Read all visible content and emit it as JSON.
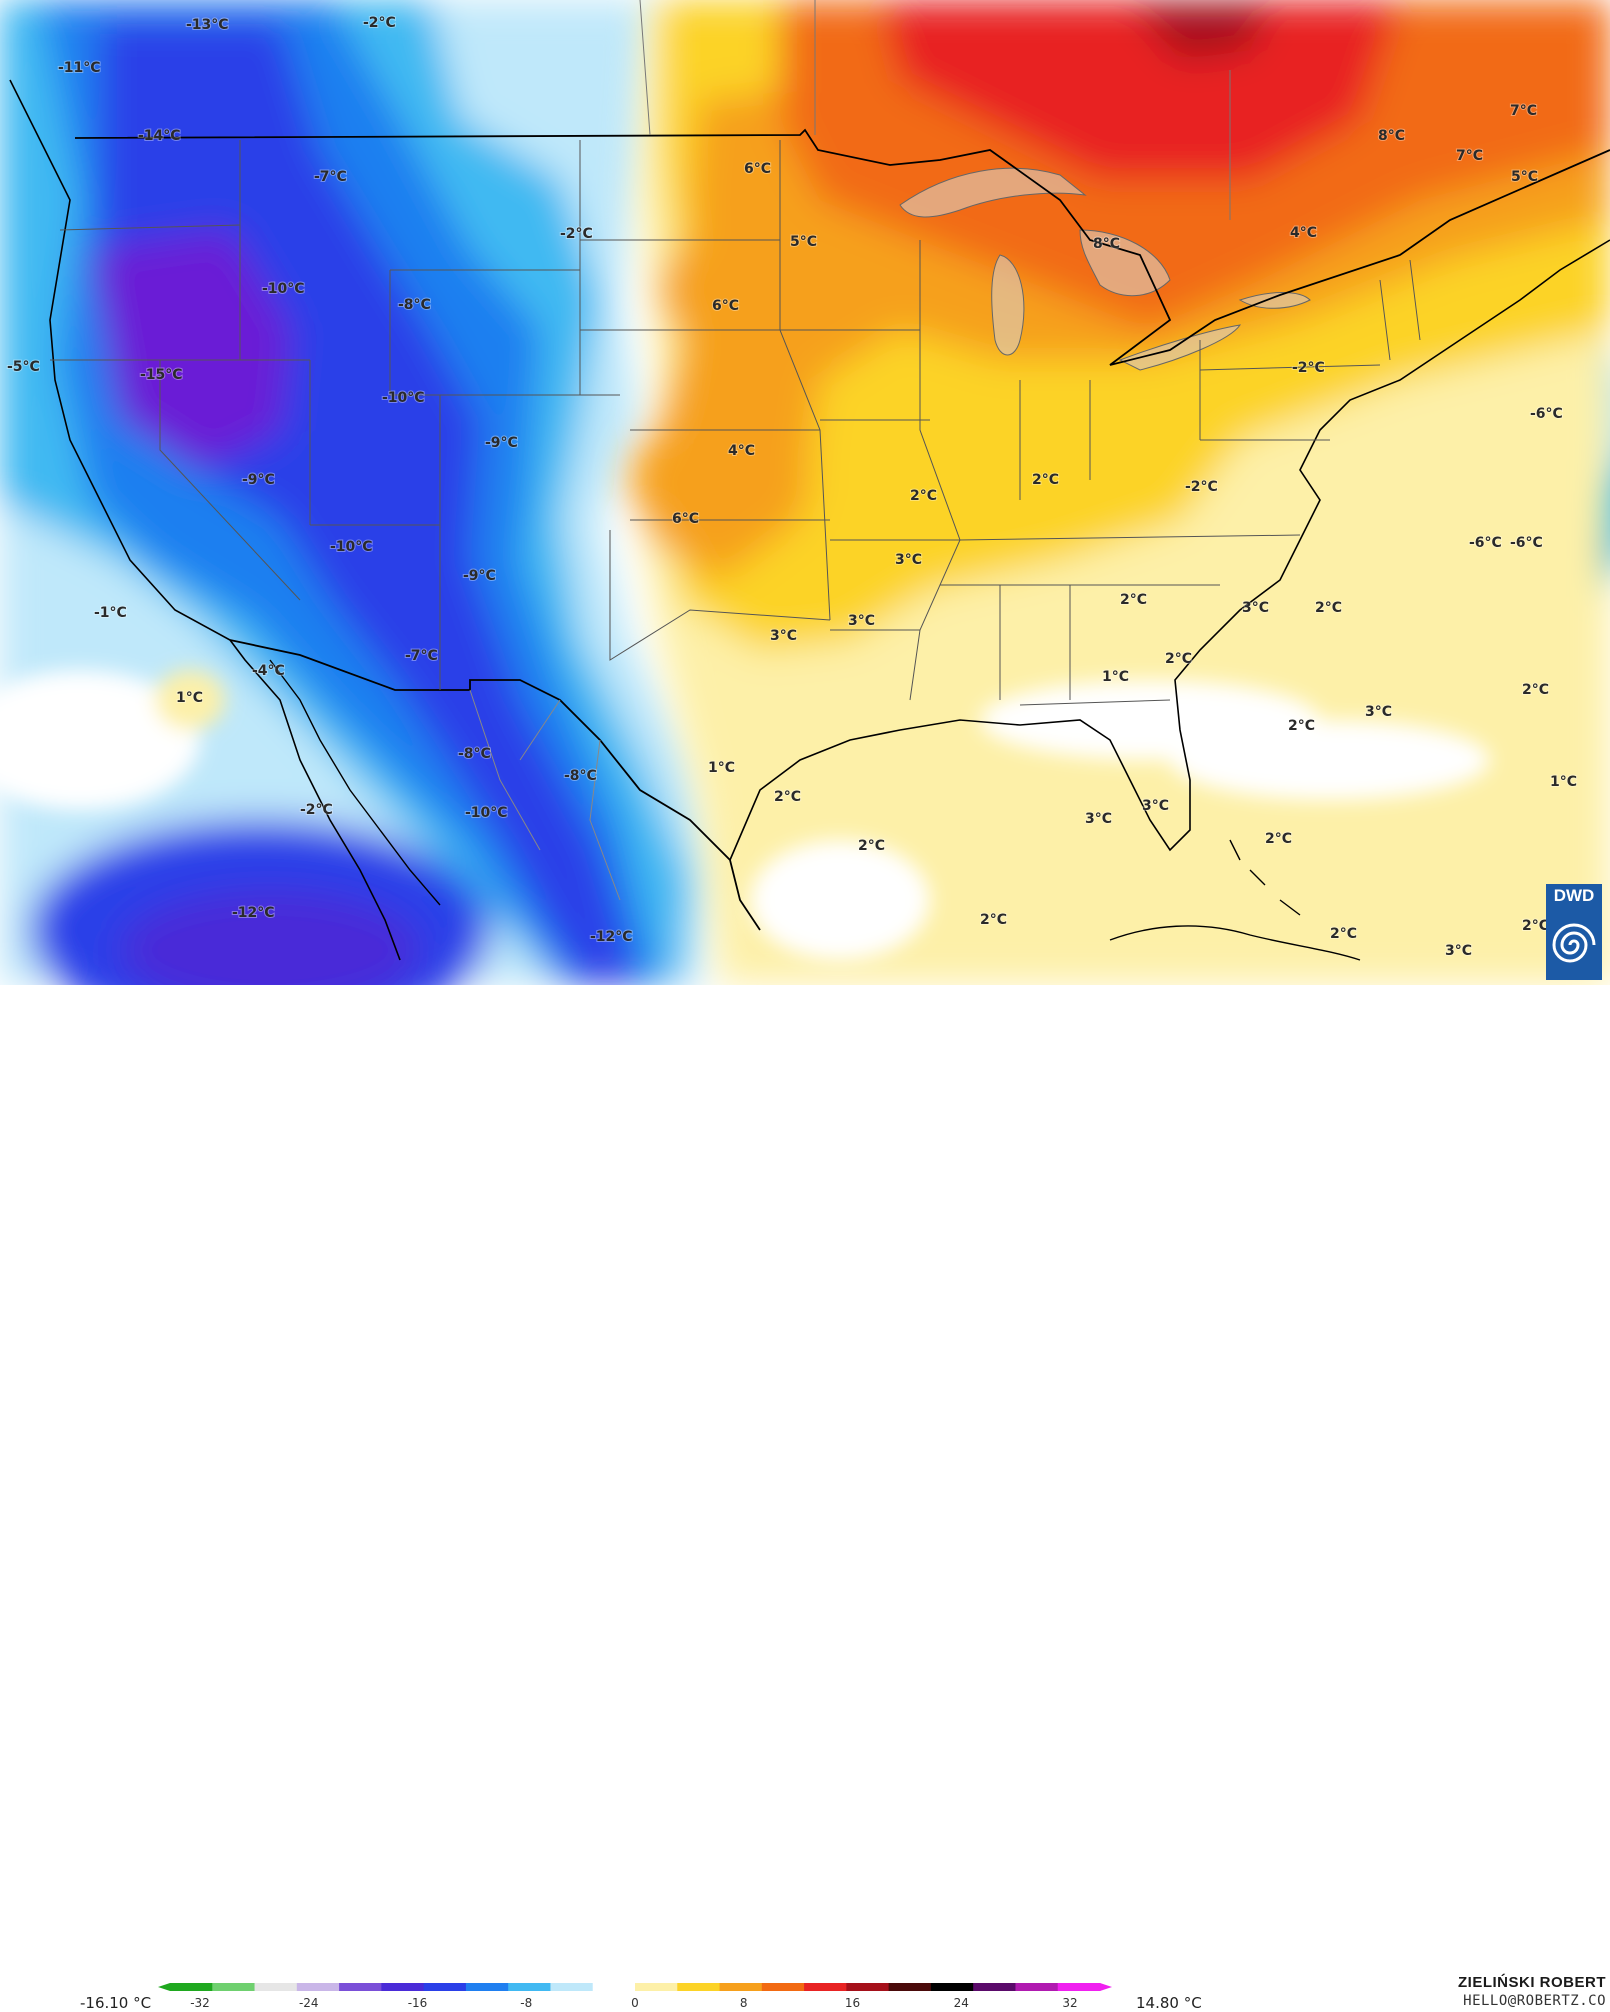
{
  "map": {
    "field": "2m temperature anomaly",
    "colors": {
      "cold_deep": "#6a1fd6",
      "cold_blue": "#2a3fe8",
      "cold_mid": "#1f7ff0",
      "cold_light": "#41b9f2",
      "cold_pale": "#bfe8fa",
      "neutral": "#ffffff",
      "warm_pale": "#fdf0a8",
      "warm_yellow": "#fcd327",
      "warm_orange": "#f6a01c",
      "warm_deep_orange": "#f26a12",
      "warm_red": "#e82323",
      "warm_dark_red": "#a5101a",
      "borders": "#000000",
      "state_lines": "#555555"
    },
    "labels": [
      {
        "text": "-13°C"
      },
      {
        "text": "-2°C"
      },
      {
        "text": "-11°C"
      },
      {
        "text": "-14°C"
      },
      {
        "text": "-7°C"
      },
      {
        "text": "-10°C"
      },
      {
        "text": "-8°C"
      },
      {
        "text": "-5°C"
      },
      {
        "text": "-15°C"
      },
      {
        "text": "-10°C"
      },
      {
        "text": "-9°C"
      },
      {
        "text": "-9°C"
      },
      {
        "text": "-10°C"
      },
      {
        "text": "-9°C"
      },
      {
        "text": "-1°C"
      },
      {
        "text": "-4°C"
      },
      {
        "text": "-7°C"
      },
      {
        "text": "1°C"
      },
      {
        "text": "-8°C"
      },
      {
        "text": "-8°C"
      },
      {
        "text": "-2°C"
      },
      {
        "text": "-10°C"
      },
      {
        "text": "-12°C"
      },
      {
        "text": "-12°C"
      },
      {
        "text": "-2°C"
      },
      {
        "text": "6°C"
      },
      {
        "text": "5°C"
      },
      {
        "text": "6°C"
      },
      {
        "text": "8°C"
      },
      {
        "text": "4°C"
      },
      {
        "text": "8°C"
      },
      {
        "text": "7°C"
      },
      {
        "text": "7°C"
      },
      {
        "text": "5°C"
      },
      {
        "text": "4°C"
      },
      {
        "text": "6°C"
      },
      {
        "text": "2°C"
      },
      {
        "text": "2°C"
      },
      {
        "text": "3°C"
      },
      {
        "text": "3°C"
      },
      {
        "text": "3°C"
      },
      {
        "text": "-2°C"
      },
      {
        "text": "-2°C"
      },
      {
        "text": "-6°C"
      },
      {
        "text": "-6°C"
      },
      {
        "text": "-6°C"
      },
      {
        "text": "2°C"
      },
      {
        "text": "3°C"
      },
      {
        "text": "2°C"
      },
      {
        "text": "2°C"
      },
      {
        "text": "1°C"
      },
      {
        "text": "1°C"
      },
      {
        "text": "2°C"
      },
      {
        "text": "3°C"
      },
      {
        "text": "2°C"
      },
      {
        "text": "2°C"
      },
      {
        "text": "2°C"
      },
      {
        "text": "3°C"
      },
      {
        "text": "3°C"
      },
      {
        "text": "2°C"
      },
      {
        "text": "2°C"
      },
      {
        "text": "2°C"
      },
      {
        "text": "1°C"
      },
      {
        "text": "2°C"
      },
      {
        "text": "3°C"
      }
    ]
  },
  "legend": {
    "min_value": "-16.10 °C",
    "max_value": "14.80 °C",
    "ticks": [
      "-32",
      "-24",
      "-16",
      "-8",
      "0",
      "8",
      "16",
      "24",
      "32"
    ],
    "colors": [
      "#1fa81f",
      "#6fd06f",
      "#e6e6e6",
      "#c9b6e8",
      "#7a4fd8",
      "#4a2bd8",
      "#2a3fe8",
      "#1f7ff0",
      "#41b9f2",
      "#bfe8fa",
      "#ffffff",
      "#fdf0a8",
      "#fcd327",
      "#f6a01c",
      "#f26a12",
      "#e82323",
      "#a5101a",
      "#4a0a0a",
      "#000000",
      "#5a0a6a",
      "#b01ab0",
      "#f020f0"
    ]
  },
  "credit": {
    "name": "ZIELIŃSKI ROBERT",
    "email": "HELLO@ROBERTZ.CO"
  },
  "logo": {
    "text": "DWD"
  }
}
